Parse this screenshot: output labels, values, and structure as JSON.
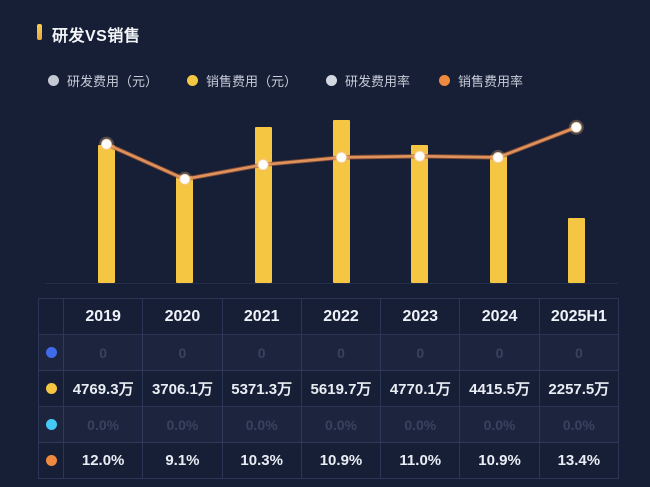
{
  "page": {
    "title": "研发VS销售",
    "accent_color": "#F5C642",
    "background_color": "#171F36"
  },
  "legend": {
    "items": [
      {
        "label": "研发费用（元）",
        "color": "#C4C9D4",
        "state": "disabled"
      },
      {
        "label": "销售费用（元）",
        "color": "#F5C642",
        "state": "active"
      },
      {
        "label": "研发费用率",
        "color": "#D3D8E0",
        "state": "disabled"
      },
      {
        "label": "销售费用率",
        "color": "#EE8A3F",
        "state": "active"
      }
    ]
  },
  "chart_data": {
    "type": "bar",
    "categories": [
      "2019",
      "2020",
      "2021",
      "2022",
      "2023",
      "2024",
      "2025H1"
    ],
    "series": [
      {
        "name": "研发费用（元）",
        "type": "bar",
        "color": "#3F6AEA",
        "visible": false,
        "unit": "万",
        "values": [
          0,
          0,
          0,
          0,
          0,
          0,
          0
        ]
      },
      {
        "name": "销售费用（元）",
        "type": "bar",
        "color": "#F5C642",
        "visible": true,
        "unit": "万",
        "values": [
          4769.3,
          3706.1,
          5371.3,
          5619.7,
          4770.1,
          4415.5,
          2257.5
        ]
      },
      {
        "name": "研发费用率",
        "type": "line",
        "color": "#45C8F7",
        "visible": false,
        "unit": "%",
        "values": [
          0,
          0,
          0,
          0,
          0,
          0,
          0
        ]
      },
      {
        "name": "销售费用率",
        "type": "line",
        "color": "#EE8A3F",
        "visible": true,
        "unit": "%",
        "values": [
          12.0,
          9.1,
          10.3,
          10.9,
          11.0,
          10.9,
          13.4
        ]
      }
    ],
    "title": "研发VS销售",
    "xlabel": "",
    "ylabel": "",
    "ylim_bar": [
      0,
      5620
    ],
    "ylim_rate": [
      0,
      14
    ],
    "grid": false,
    "legend_position": "top"
  },
  "table": {
    "header": [
      "2019",
      "2020",
      "2021",
      "2022",
      "2023",
      "2024",
      "2025H1"
    ],
    "rows": [
      {
        "series": "研发费用（元）",
        "dot_color": "#3F6AEA",
        "dimmed": true,
        "cells": [
          "0",
          "0",
          "0",
          "0",
          "0",
          "0",
          "0"
        ]
      },
      {
        "series": "销售费用（元）",
        "dot_color": "#F5C642",
        "dimmed": false,
        "cells": [
          "4769.3万",
          "3706.1万",
          "5371.3万",
          "5619.7万",
          "4770.1万",
          "4415.5万",
          "2257.5万"
        ]
      },
      {
        "series": "研发费用率",
        "dot_color": "#45C8F7",
        "dimmed": true,
        "cells": [
          "0.0%",
          "0.0%",
          "0.0%",
          "0.0%",
          "0.0%",
          "0.0%",
          "0.0%"
        ]
      },
      {
        "series": "销售费用率",
        "dot_color": "#EE8A3F",
        "dimmed": false,
        "cells": [
          "12.0%",
          "9.1%",
          "10.3%",
          "10.9%",
          "11.0%",
          "10.9%",
          "13.4%"
        ]
      }
    ]
  }
}
